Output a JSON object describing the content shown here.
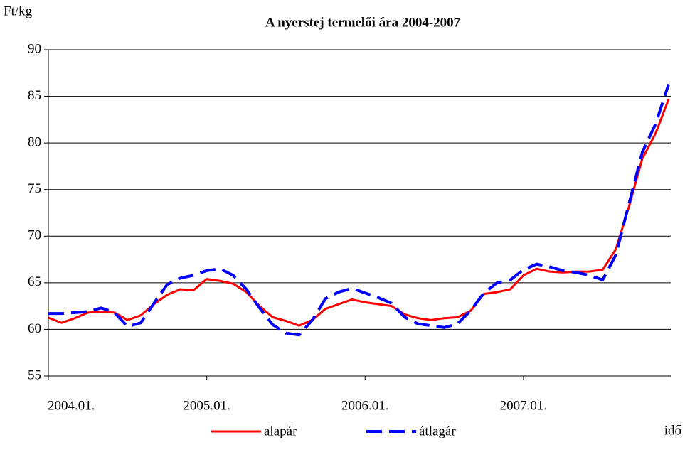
{
  "chart_data": {
    "type": "line",
    "title": "A nyerstej termelői ára 2004-2007",
    "y_label": "Ft/kg",
    "x_label": "idő",
    "categories": [
      "2004.01.",
      null,
      null,
      null,
      null,
      null,
      null,
      null,
      null,
      null,
      null,
      null,
      "2005.01.",
      null,
      null,
      null,
      null,
      null,
      null,
      null,
      null,
      null,
      null,
      null,
      "2006.01.",
      null,
      null,
      null,
      null,
      null,
      null,
      null,
      null,
      null,
      null,
      null,
      "2007.01.",
      null,
      null,
      null,
      null,
      null,
      null,
      null,
      null,
      null,
      null,
      null
    ],
    "series": [
      {
        "name": "alapár",
        "color": "#ff0000",
        "dash": "solid",
        "values": [
          61.25,
          60.7,
          61.2,
          61.8,
          61.9,
          61.8,
          61.0,
          61.5,
          62.7,
          63.7,
          64.3,
          64.2,
          65.4,
          65.2,
          64.9,
          64.0,
          62.5,
          61.3,
          60.9,
          60.4,
          61.0,
          62.2,
          62.7,
          63.2,
          62.9,
          62.7,
          62.5,
          61.6,
          61.2,
          61.0,
          61.2,
          61.3,
          62.0,
          63.8,
          64.0,
          64.3,
          65.8,
          66.5,
          66.2,
          66.1,
          66.2,
          66.2,
          66.4,
          68.6,
          73.2,
          78.3,
          81.0,
          84.7
        ]
      },
      {
        "name": "átlagár",
        "color": "#0000ff",
        "dash": "dashed",
        "values": [
          61.7,
          61.7,
          61.8,
          61.9,
          62.3,
          61.8,
          60.3,
          60.7,
          62.8,
          64.8,
          65.5,
          65.8,
          66.3,
          66.5,
          65.8,
          64.3,
          62.3,
          60.5,
          59.6,
          59.4,
          61.0,
          63.3,
          64.0,
          64.4,
          63.9,
          63.4,
          62.8,
          61.3,
          60.6,
          60.4,
          60.2,
          60.6,
          62.0,
          63.9,
          65.0,
          65.3,
          66.4,
          67.0,
          66.7,
          66.3,
          66.1,
          65.8,
          65.3,
          68.0,
          73.5,
          79.0,
          82.0,
          86.3
        ]
      }
    ],
    "ylim": [
      55,
      90
    ],
    "yticks": [
      55,
      60,
      65,
      70,
      75,
      80,
      85,
      90
    ],
    "grid": true,
    "legend": "bottom"
  }
}
